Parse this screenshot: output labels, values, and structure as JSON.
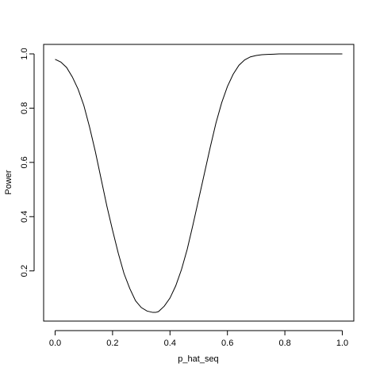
{
  "chart_data": {
    "type": "line",
    "xlabel": "p_hat_seq",
    "ylabel": "Power",
    "xlim": [
      -0.04,
      1.04
    ],
    "ylim": [
      0.015,
      1.035
    ],
    "x_ticks": [
      {
        "value": 0.0,
        "label": "0.0"
      },
      {
        "value": 0.2,
        "label": "0.2"
      },
      {
        "value": 0.4,
        "label": "0.4"
      },
      {
        "value": 0.6,
        "label": "0.6"
      },
      {
        "value": 0.8,
        "label": "0.8"
      },
      {
        "value": 1.0,
        "label": "1.0"
      }
    ],
    "y_ticks": [
      {
        "value": 0.2,
        "label": "0.2"
      },
      {
        "value": 0.4,
        "label": "0.4"
      },
      {
        "value": 0.6,
        "label": "0.6"
      },
      {
        "value": 0.8,
        "label": "0.8"
      },
      {
        "value": 1.0,
        "label": "1.0"
      }
    ],
    "grid": false,
    "line_color": "#000000",
    "series": [
      {
        "x": [
          0.0,
          0.02,
          0.04,
          0.06,
          0.08,
          0.1,
          0.12,
          0.14,
          0.16,
          0.18,
          0.2,
          0.22,
          0.24,
          0.26,
          0.28,
          0.3,
          0.32,
          0.34,
          0.35,
          0.36,
          0.38,
          0.4,
          0.42,
          0.44,
          0.46,
          0.48,
          0.5,
          0.52,
          0.54,
          0.56,
          0.58,
          0.6,
          0.62,
          0.64,
          0.66,
          0.68,
          0.7,
          0.72,
          0.74,
          0.76,
          0.78,
          0.8,
          0.85,
          0.9,
          0.95,
          1.0
        ],
        "values": [
          0.98,
          0.97,
          0.95,
          0.915,
          0.87,
          0.81,
          0.73,
          0.64,
          0.54,
          0.44,
          0.35,
          0.265,
          0.19,
          0.135,
          0.09,
          0.065,
          0.052,
          0.047,
          0.047,
          0.05,
          0.07,
          0.1,
          0.145,
          0.205,
          0.28,
          0.37,
          0.465,
          0.56,
          0.655,
          0.745,
          0.82,
          0.88,
          0.925,
          0.958,
          0.978,
          0.989,
          0.994,
          0.997,
          0.998,
          0.999,
          1.0,
          1.0,
          1.0,
          1.0,
          1.0,
          1.0
        ]
      }
    ]
  }
}
